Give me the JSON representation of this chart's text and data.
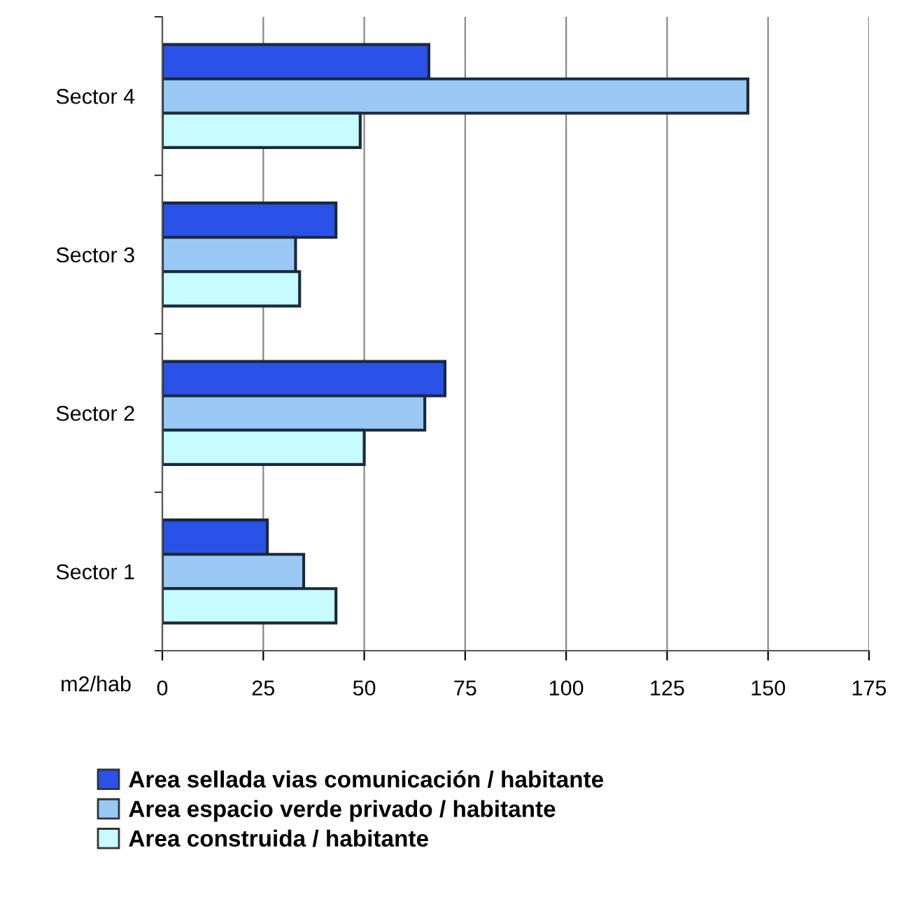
{
  "chart_data": {
    "type": "bar",
    "orientation": "horizontal",
    "xlabel": "m2/hab",
    "categories": [
      "Sector 4",
      "Sector 3",
      "Sector 2",
      "Sector 1"
    ],
    "series": [
      {
        "name": "Area sellada vias comunicación / habitante",
        "color": "#2a52e8",
        "values": [
          66,
          43,
          70,
          26
        ]
      },
      {
        "name": "Area espacio verde privado / habitante",
        "color": "#99c8f5",
        "values": [
          145,
          33,
          65,
          35
        ]
      },
      {
        "name": "Area construida / habitante",
        "color": "#c6fbff",
        "values": [
          49,
          34,
          50,
          43
        ]
      }
    ],
    "xlim": [
      0,
      175
    ],
    "xticks": [
      0,
      25,
      50,
      75,
      100,
      125,
      150,
      175
    ],
    "grid": "x",
    "legend": "bottom"
  }
}
